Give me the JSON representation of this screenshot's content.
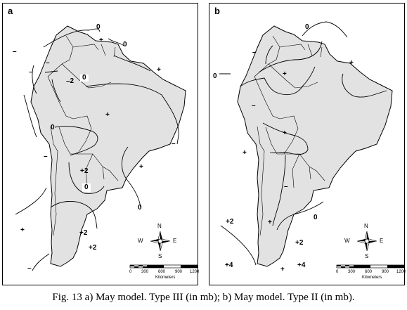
{
  "caption": "Fig. 13 a) May model. Type III (in mb); b) May model. Type II (in mb).",
  "map_style": {
    "land": "#e2e2e2",
    "outline": "#000000",
    "contour": "#000000"
  },
  "panels": [
    {
      "id": "a",
      "label": "a",
      "marks": {
        "m1": "0",
        "m2": "+",
        "m3": "0",
        "m4": "–",
        "m5": "–",
        "m6": "–",
        "m7": "–2",
        "m8": "0",
        "m9": "+",
        "m10": "+",
        "m11": "0",
        "m12": "–",
        "m13": "–",
        "m14": "+",
        "m15": "+2",
        "m16": "0",
        "m17": "0",
        "m18": "+",
        "m19": "+2",
        "m20": "+2",
        "m21": "–"
      }
    },
    {
      "id": "b",
      "label": "b",
      "marks": {
        "m1": "0",
        "m2": "–",
        "m3": "+",
        "m4": "0",
        "m5": "+",
        "m6": "–",
        "m7": "+",
        "m8": "+",
        "m9": "–",
        "m10": "0",
        "m11": "+2",
        "m12": "+",
        "m13": "+2",
        "m14": "+4",
        "m15": "+4",
        "m16": "+"
      }
    }
  ],
  "compass": {
    "n": "N",
    "s": "S",
    "e": "E",
    "w": "W"
  },
  "scale_bar": {
    "ticks": [
      "0",
      "300",
      "600",
      "900",
      "1200"
    ],
    "unit": "Kilometers"
  }
}
